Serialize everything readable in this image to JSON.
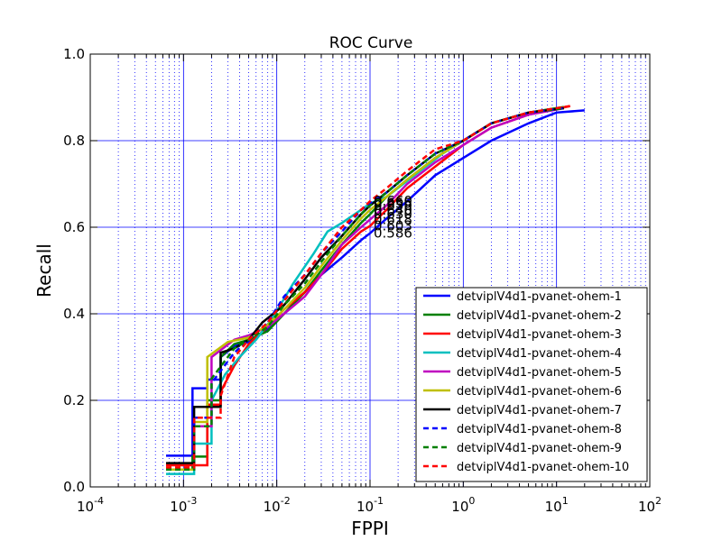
{
  "chart_data": {
    "type": "line",
    "title": "ROC Curve",
    "xlabel": "FPPI",
    "ylabel": "Recall",
    "xscale": "log",
    "xlim": [
      0.0001,
      100
    ],
    "ylim": [
      0.0,
      1.0
    ],
    "x_tick_base": "10",
    "x_tick_exponents": [
      "-4",
      "-3",
      "-2",
      "-1",
      "0",
      "1",
      "2"
    ],
    "x_ticks": [
      0.0001,
      0.001,
      0.01,
      0.1,
      1,
      10,
      100
    ],
    "y_tick_labels": [
      "0.0",
      "0.2",
      "0.4",
      "0.6",
      "0.8",
      "1.0"
    ],
    "y_ticks": [
      0.0,
      0.2,
      0.4,
      0.6,
      0.8,
      1.0
    ],
    "grid": true,
    "legend_position": "lower-right",
    "annotation_values": [
      "0.586",
      "0.603",
      "0.618",
      "0.630",
      "0.640",
      "0.650",
      "0.655",
      "0.660"
    ],
    "series": [
      {
        "name": "detviplV4d1-pvanet-ohem-1",
        "color": "#0000ff",
        "dash": "solid",
        "x": [
          0.00065,
          0.00125,
          0.00125,
          0.0018,
          0.0018,
          0.0025,
          0.0025,
          0.0035,
          0.005,
          0.008,
          0.012,
          0.02,
          0.03,
          0.05,
          0.08,
          0.1,
          0.15,
          0.25,
          0.5,
          1,
          2,
          5,
          10,
          20
        ],
        "y": [
          0.072,
          0.072,
          0.228,
          0.228,
          0.248,
          0.248,
          0.3,
          0.325,
          0.335,
          0.365,
          0.4,
          0.45,
          0.49,
          0.53,
          0.57,
          0.586,
          0.62,
          0.66,
          0.72,
          0.76,
          0.8,
          0.84,
          0.865,
          0.87
        ]
      },
      {
        "name": "detviplV4d1-pvanet-ohem-2",
        "color": "#008000",
        "dash": "solid",
        "x": [
          0.00065,
          0.00125,
          0.00125,
          0.0018,
          0.0018,
          0.0025,
          0.0025,
          0.0035,
          0.005,
          0.008,
          0.012,
          0.02,
          0.03,
          0.05,
          0.08,
          0.1,
          0.15,
          0.25,
          0.5,
          1,
          2,
          5,
          12
        ],
        "y": [
          0.04,
          0.04,
          0.07,
          0.07,
          0.2,
          0.2,
          0.3,
          0.33,
          0.34,
          0.36,
          0.4,
          0.45,
          0.5,
          0.56,
          0.61,
          0.63,
          0.67,
          0.71,
          0.76,
          0.8,
          0.84,
          0.865,
          0.878
        ]
      },
      {
        "name": "detviplV4d1-pvanet-ohem-3",
        "color": "#ff0000",
        "dash": "solid",
        "x": [
          0.00065,
          0.0018,
          0.0018,
          0.0025,
          0.0025,
          0.0035,
          0.005,
          0.008,
          0.012,
          0.02,
          0.03,
          0.05,
          0.08,
          0.1,
          0.15,
          0.25,
          0.5,
          1,
          2,
          5,
          14
        ],
        "y": [
          0.05,
          0.05,
          0.19,
          0.19,
          0.22,
          0.28,
          0.33,
          0.37,
          0.41,
          0.45,
          0.49,
          0.55,
          0.59,
          0.603,
          0.64,
          0.69,
          0.74,
          0.79,
          0.83,
          0.86,
          0.88
        ]
      },
      {
        "name": "detviplV4d1-pvanet-ohem-4",
        "color": "#00bfbf",
        "dash": "solid",
        "x": [
          0.00065,
          0.0013,
          0.0013,
          0.002,
          0.002,
          0.0028,
          0.004,
          0.006,
          0.009,
          0.015,
          0.025,
          0.035,
          0.05,
          0.08,
          0.1,
          0.15,
          0.3,
          0.6,
          1,
          2,
          5,
          12
        ],
        "y": [
          0.03,
          0.03,
          0.1,
          0.1,
          0.2,
          0.26,
          0.3,
          0.34,
          0.39,
          0.47,
          0.54,
          0.59,
          0.61,
          0.64,
          0.655,
          0.67,
          0.72,
          0.77,
          0.8,
          0.84,
          0.865,
          0.875
        ]
      },
      {
        "name": "detviplV4d1-pvanet-ohem-5",
        "color": "#bf00bf",
        "dash": "solid",
        "x": [
          0.00065,
          0.0013,
          0.0013,
          0.002,
          0.002,
          0.0035,
          0.005,
          0.008,
          0.012,
          0.02,
          0.03,
          0.05,
          0.08,
          0.1,
          0.15,
          0.25,
          0.5,
          1,
          2,
          5,
          12
        ],
        "y": [
          0.04,
          0.04,
          0.14,
          0.14,
          0.3,
          0.34,
          0.35,
          0.37,
          0.4,
          0.44,
          0.49,
          0.56,
          0.6,
          0.618,
          0.65,
          0.7,
          0.75,
          0.79,
          0.83,
          0.86,
          0.875
        ]
      },
      {
        "name": "detviplV4d1-pvanet-ohem-6",
        "color": "#bfbf00",
        "dash": "solid",
        "x": [
          0.00065,
          0.0013,
          0.0013,
          0.0018,
          0.0018,
          0.003,
          0.005,
          0.008,
          0.012,
          0.02,
          0.03,
          0.05,
          0.08,
          0.1,
          0.15,
          0.25,
          0.5,
          1,
          2,
          5,
          12
        ],
        "y": [
          0.04,
          0.04,
          0.15,
          0.15,
          0.3,
          0.335,
          0.345,
          0.375,
          0.41,
          0.46,
          0.51,
          0.57,
          0.62,
          0.64,
          0.67,
          0.71,
          0.76,
          0.8,
          0.84,
          0.865,
          0.875
        ]
      },
      {
        "name": "detviplV4d1-pvanet-ohem-7",
        "color": "#000000",
        "dash": "solid",
        "x": [
          0.00065,
          0.0013,
          0.0013,
          0.0025,
          0.0025,
          0.0035,
          0.005,
          0.007,
          0.012,
          0.02,
          0.03,
          0.05,
          0.08,
          0.1,
          0.15,
          0.25,
          0.5,
          1,
          2,
          5,
          12
        ],
        "y": [
          0.055,
          0.055,
          0.185,
          0.185,
          0.31,
          0.32,
          0.34,
          0.38,
          0.42,
          0.48,
          0.53,
          0.58,
          0.63,
          0.65,
          0.68,
          0.72,
          0.77,
          0.8,
          0.84,
          0.865,
          0.875
        ]
      },
      {
        "name": "detviplV4d1-pvanet-ohem-8",
        "color": "#0000ff",
        "dash": "dashed",
        "x": [
          0.00065,
          0.0013,
          0.0013,
          0.002,
          0.002,
          0.0035,
          0.005,
          0.008,
          0.012,
          0.02,
          0.03,
          0.05,
          0.08,
          0.1,
          0.15,
          0.25,
          0.5,
          1,
          2,
          5,
          12
        ],
        "y": [
          0.04,
          0.04,
          0.16,
          0.16,
          0.24,
          0.31,
          0.34,
          0.38,
          0.44,
          0.49,
          0.54,
          0.59,
          0.64,
          0.655,
          0.68,
          0.72,
          0.77,
          0.8,
          0.84,
          0.865,
          0.875
        ]
      },
      {
        "name": "detviplV4d1-pvanet-ohem-9",
        "color": "#008000",
        "dash": "dashed",
        "x": [
          0.00065,
          0.0013,
          0.0013,
          0.002,
          0.002,
          0.0035,
          0.005,
          0.008,
          0.012,
          0.02,
          0.03,
          0.05,
          0.08,
          0.1,
          0.15,
          0.25,
          0.5,
          1,
          2,
          5,
          12
        ],
        "y": [
          0.04,
          0.04,
          0.14,
          0.14,
          0.25,
          0.32,
          0.34,
          0.37,
          0.42,
          0.47,
          0.52,
          0.58,
          0.63,
          0.65,
          0.68,
          0.72,
          0.77,
          0.8,
          0.84,
          0.865,
          0.875
        ]
      },
      {
        "name": "detviplV4d1-pvanet-ohem-10",
        "color": "#ff0000",
        "dash": "dashed",
        "x": [
          0.00065,
          0.0013,
          0.0013,
          0.0025,
          0.0025,
          0.0035,
          0.005,
          0.008,
          0.012,
          0.02,
          0.03,
          0.05,
          0.08,
          0.1,
          0.15,
          0.25,
          0.5,
          1,
          2,
          5,
          14
        ],
        "y": [
          0.045,
          0.045,
          0.16,
          0.16,
          0.21,
          0.3,
          0.34,
          0.38,
          0.43,
          0.49,
          0.54,
          0.6,
          0.64,
          0.66,
          0.69,
          0.73,
          0.78,
          0.8,
          0.84,
          0.865,
          0.88
        ]
      }
    ]
  }
}
